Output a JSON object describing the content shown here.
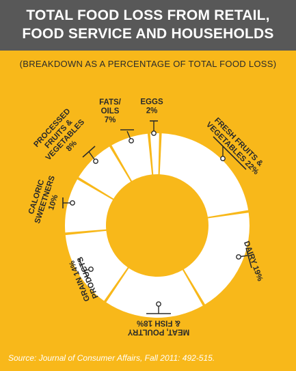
{
  "header": {
    "title_line1": "TOTAL FOOD LOSS FROM RETAIL,",
    "title_line2": "FOOD SERVICE AND HOUSEHOLDS"
  },
  "subtitle": "(BREAKDOWN AS A PERCENTAGE OF TOTAL FOOD LOSS)",
  "source": "Source: Journal of Consumer Affairs, Fall 2011: 492-515.",
  "colors": {
    "background": "#f8b81a",
    "header": "#585858",
    "slice": "#ffffff",
    "text": "#2a2a2a"
  },
  "chart_data": {
    "type": "pie",
    "donut": true,
    "title": "TOTAL FOOD LOSS FROM RETAIL, FOOD SERVICE AND HOUSEHOLDS",
    "subtitle": "(BREAKDOWN AS A PERCENTAGE OF TOTAL FOOD LOSS)",
    "unit": "%",
    "slices": [
      {
        "label": "FRESH FRUITS & VEGETABLES",
        "value": 22,
        "lines": [
          "FRESH FRUITS &",
          "VEGETABLES 22%"
        ]
      },
      {
        "label": "DAIRY",
        "value": 19,
        "lines": [
          "DAIRY 19%"
        ]
      },
      {
        "label": "MEAT, POULTRY & FISH",
        "value": 18,
        "lines": [
          "MEAT, POULTRY",
          "& FISH 18%"
        ]
      },
      {
        "label": "GRAIN PRODUCTS",
        "value": 14,
        "lines": [
          "GRAIN 14%",
          "PRODUCTS"
        ]
      },
      {
        "label": "CALORIC SWEETNERS",
        "value": 10,
        "lines": [
          "CALORIC",
          "SWEETNERS",
          "10%"
        ]
      },
      {
        "label": "PROCESSED FRUITS & VEGETABLES",
        "value": 8,
        "lines": [
          "PROCESSED",
          "FRUITS &",
          "VEGETABLES",
          "8%"
        ]
      },
      {
        "label": "FATS/OILS",
        "value": 7,
        "lines": [
          "FATS/",
          "OILS",
          "7%"
        ]
      },
      {
        "label": "EGGS",
        "value": 2,
        "lines": [
          "EGGS",
          "2%"
        ]
      }
    ]
  }
}
